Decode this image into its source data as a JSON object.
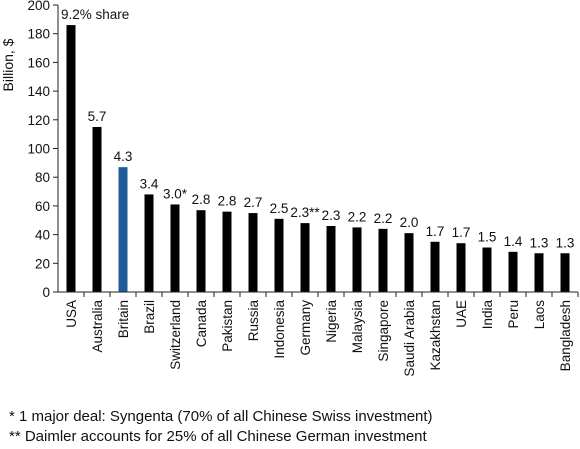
{
  "chart_data": {
    "type": "bar",
    "title": "",
    "xlabel": "",
    "ylabel": "Billion, $",
    "ylim": [
      0,
      200
    ],
    "yticks": [
      0,
      20,
      40,
      60,
      80,
      100,
      120,
      140,
      160,
      180,
      200
    ],
    "grid": false,
    "legend": "none",
    "bar_color": "#000000",
    "highlight_color": "#1f5c99",
    "highlight_category": "Britain",
    "value_label_suffix_first": "% share",
    "categories": [
      "USA",
      "Australia",
      "Britain",
      "Brazil",
      "Switzerland",
      "Canada",
      "Pakistan",
      "Russia",
      "Indonesia",
      "Germany",
      "Nigeria",
      "Malaysia",
      "Singapore",
      "Saudi Arabia",
      "Kazakhstan",
      "UAE",
      "India",
      "Peru",
      "Laos",
      "Bangladesh"
    ],
    "values": [
      186,
      115,
      87,
      68,
      61,
      57,
      56,
      55,
      51,
      48,
      46,
      45,
      44,
      41,
      35,
      34,
      31,
      28,
      27,
      27
    ],
    "share_labels": [
      "9.2",
      "5.7",
      "4.3",
      "3.4",
      "3.0*",
      "2.8",
      "2.8",
      "2.7",
      "2.5",
      "2.3**",
      "2.3",
      "2.2",
      "2.2",
      "2.0",
      "1.7",
      "1.7",
      "1.5",
      "1.4",
      "1.3",
      "1.3"
    ]
  },
  "footnotes": {
    "note1": "* 1 major deal: Syngenta (70% of all Chinese Swiss investment)",
    "note2": "** Daimler accounts for 25% of all Chinese German investment"
  }
}
